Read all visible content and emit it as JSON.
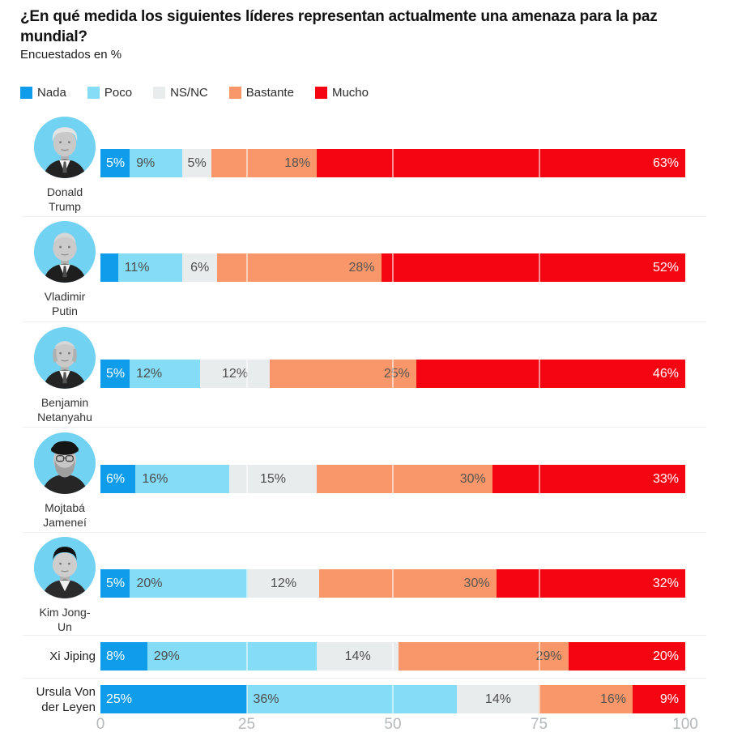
{
  "title": "¿En qué medida los siguientes líderes representan actualmente una amenaza para la paz mundial?",
  "subtitle": "Encuestados en %",
  "legend": [
    {
      "label": "Nada",
      "color": "#0f9ceb"
    },
    {
      "label": "Poco",
      "color": "#84dcf6"
    },
    {
      "label": "NS/NC",
      "color": "#e9eced"
    },
    {
      "label": "Bastante",
      "color": "#f9976b"
    },
    {
      "label": "Mucho",
      "color": "#f50511"
    }
  ],
  "chart_data": {
    "type": "bar",
    "stacked": true,
    "orientation": "horizontal",
    "title": "¿En qué medida los siguientes líderes representan actualmente una amenaza para la paz mundial?",
    "subtitle": "Encuestados en %",
    "categories": [
      "Donald Trump",
      "Vladimir Putin",
      "Benjamin Netanyahu",
      "Mojtabá Jameneí",
      "Kim Jong-Un",
      "Xi Jiping",
      "Ursula Von der Leyen"
    ],
    "series": [
      {
        "name": "Nada",
        "color": "#0f9ceb",
        "values": [
          5,
          3,
          5,
          6,
          5,
          8,
          25
        ]
      },
      {
        "name": "Poco",
        "color": "#84dcf6",
        "values": [
          9,
          11,
          12,
          16,
          20,
          29,
          36
        ]
      },
      {
        "name": "NS/NC",
        "color": "#e9eced",
        "values": [
          5,
          6,
          12,
          15,
          12,
          14,
          14
        ]
      },
      {
        "name": "Bastante",
        "color": "#f9976b",
        "values": [
          18,
          28,
          25,
          30,
          30,
          29,
          16
        ]
      },
      {
        "name": "Mucho",
        "color": "#f50511",
        "values": [
          63,
          52,
          46,
          33,
          32,
          20,
          9
        ]
      }
    ],
    "value_labels": [
      [
        "5%",
        "9%",
        "5%",
        "18%",
        "63%"
      ],
      [
        "",
        "11%",
        "6%",
        "28%",
        "52%"
      ],
      [
        "5%",
        "12%",
        "12%",
        "25%",
        "46%"
      ],
      [
        "6%",
        "16%",
        "15%",
        "30%",
        "33%"
      ],
      [
        "5%",
        "20%",
        "12%",
        "30%",
        "32%"
      ],
      [
        "8%",
        "29%",
        "14%",
        "29%",
        "20%"
      ],
      [
        "25%",
        "36%",
        "14%",
        "16%",
        "9%"
      ]
    ],
    "xlim": [
      0,
      100
    ],
    "x_ticks": [
      "0",
      "25",
      "50",
      "75",
      "100"
    ],
    "gridlines": [
      25,
      50,
      75
    ],
    "legend_position": "top"
  },
  "rows": [
    {
      "label_lines": [
        "Donald",
        "Trump"
      ],
      "avatar": "portrait-donald-trump"
    },
    {
      "label_lines": [
        "Vladimir",
        "Putin"
      ],
      "avatar": "portrait-vladimir-putin"
    },
    {
      "label_lines": [
        "Benjamin",
        "Netanyahu"
      ],
      "avatar": "portrait-benjamin-netanyahu"
    },
    {
      "label_lines": [
        "Mojtabá",
        "Jameneí"
      ],
      "avatar": "portrait-mojtaba-jamenei"
    },
    {
      "label_lines": [
        "Kim Jong-",
        "Un"
      ],
      "avatar": "portrait-kim-jong-un"
    },
    {
      "label_lines": [
        "Xi Jiping"
      ],
      "avatar": null
    },
    {
      "label_lines": [
        "Ursula Von",
        "der Leyen"
      ],
      "avatar": null
    }
  ]
}
